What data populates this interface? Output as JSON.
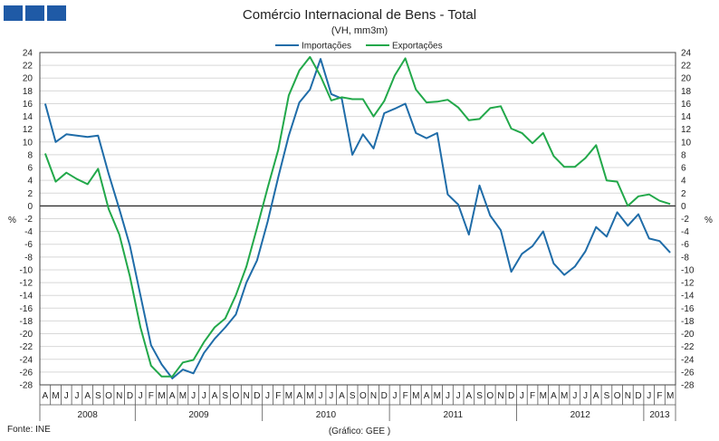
{
  "header": {
    "title": "Comércio Internacional de Bens - Total",
    "subtitle": "(VH, mm3m)"
  },
  "footer": {
    "source": "Fonte: INE",
    "credit": "(Gráfico: GEE )"
  },
  "colors": {
    "importacoes": "#1f6ca8",
    "exportacoes": "#22a84a",
    "logo": "#1f5aa6"
  },
  "chart_data": {
    "type": "line",
    "title": "Comércio Internacional de Bens - Total",
    "subtitle": "(VH, mm3m)",
    "ylabel_left": "%",
    "ylabel_right": "%",
    "ylim": [
      -28,
      24
    ],
    "yticks": [
      24,
      22,
      20,
      18,
      16,
      14,
      12,
      10,
      8,
      6,
      4,
      2,
      0,
      -2,
      -4,
      -6,
      -8,
      -10,
      -12,
      -14,
      -16,
      -18,
      -20,
      -22,
      -24,
      -26,
      -28
    ],
    "legend_position": "top-center",
    "x": [
      "2008-04",
      "2008-05",
      "2008-06",
      "2008-07",
      "2008-08",
      "2008-09",
      "2008-10",
      "2008-11",
      "2008-12",
      "2009-01",
      "2009-02",
      "2009-03",
      "2009-04",
      "2009-05",
      "2009-06",
      "2009-07",
      "2009-08",
      "2009-09",
      "2009-10",
      "2009-11",
      "2009-12",
      "2010-01",
      "2010-02",
      "2010-03",
      "2010-04",
      "2010-05",
      "2010-06",
      "2010-07",
      "2010-08",
      "2010-09",
      "2010-10",
      "2010-11",
      "2010-12",
      "2011-01",
      "2011-02",
      "2011-03",
      "2011-04",
      "2011-05",
      "2011-06",
      "2011-07",
      "2011-08",
      "2011-09",
      "2011-10",
      "2011-11",
      "2011-12",
      "2012-01",
      "2012-02",
      "2012-03",
      "2012-04",
      "2012-05",
      "2012-06",
      "2012-07",
      "2012-08",
      "2012-09",
      "2012-10",
      "2012-11",
      "2012-12",
      "2013-01",
      "2013-02",
      "2013-03"
    ],
    "month_labels": [
      "A",
      "M",
      "J",
      "J",
      "A",
      "S",
      "O",
      "N",
      "D",
      "J",
      "F",
      "M",
      "A",
      "M",
      "J",
      "J",
      "A",
      "S",
      "O",
      "N",
      "D",
      "J",
      "F",
      "M",
      "A",
      "M",
      "J",
      "J",
      "A",
      "S",
      "O",
      "N",
      "D",
      "J",
      "F",
      "M",
      "A",
      "M",
      "J",
      "J",
      "A",
      "S",
      "O",
      "N",
      "D",
      "J",
      "F",
      "M",
      "A",
      "M",
      "J",
      "J",
      "A",
      "S",
      "O",
      "N",
      "D",
      "J",
      "F",
      "M"
    ],
    "year_labels": [
      "2008",
      "2009",
      "2010",
      "2011",
      "2012",
      "2013"
    ],
    "series": [
      {
        "name": "Importações",
        "color": "#1f6ca8",
        "values": [
          16,
          10,
          11.2,
          11,
          10.8,
          11,
          5,
          -0.5,
          -6.2,
          -14,
          -21.8,
          -24.8,
          -27,
          -25.6,
          -26.2,
          -23,
          -20.8,
          -19,
          -17,
          -12,
          -8.5,
          -2.5,
          4.5,
          11,
          16.2,
          18.2,
          23,
          17.5,
          16.8,
          8,
          11.2,
          9,
          14.5,
          15.2,
          16,
          11.4,
          10.6,
          11.4,
          1.8,
          0.2,
          -4.5,
          3.2,
          -1.5,
          -3.8,
          -10.3,
          -7.5,
          -6.3,
          -4,
          -9,
          -10.8,
          -9.5,
          -7.1,
          -3.3,
          -4.8,
          -1,
          -3.1,
          -1.3,
          -5.1,
          -5.5,
          -7.3
        ]
      },
      {
        "name": "Exportações",
        "color": "#22a84a",
        "values": [
          8.2,
          3.8,
          5.2,
          4.2,
          3.4,
          5.8,
          -0.5,
          -4.5,
          -11,
          -19,
          -25,
          -26.7,
          -26.7,
          -24.5,
          -24.1,
          -21.3,
          -19,
          -17.6,
          -14,
          -9.5,
          -3.4,
          2.8,
          8.8,
          17.3,
          21.2,
          23.3,
          20.3,
          16.5,
          17,
          16.7,
          16.7,
          14,
          16.4,
          20.4,
          23.1,
          18.2,
          16.2,
          16.3,
          16.6,
          15.4,
          13.4,
          13.6,
          15.3,
          15.6,
          12.1,
          11.4,
          9.8,
          11.4,
          7.8,
          6.1,
          6.1,
          7.5,
          9.5,
          4,
          3.8,
          0,
          1.5,
          1.8,
          0.8,
          0.3
        ]
      }
    ]
  }
}
